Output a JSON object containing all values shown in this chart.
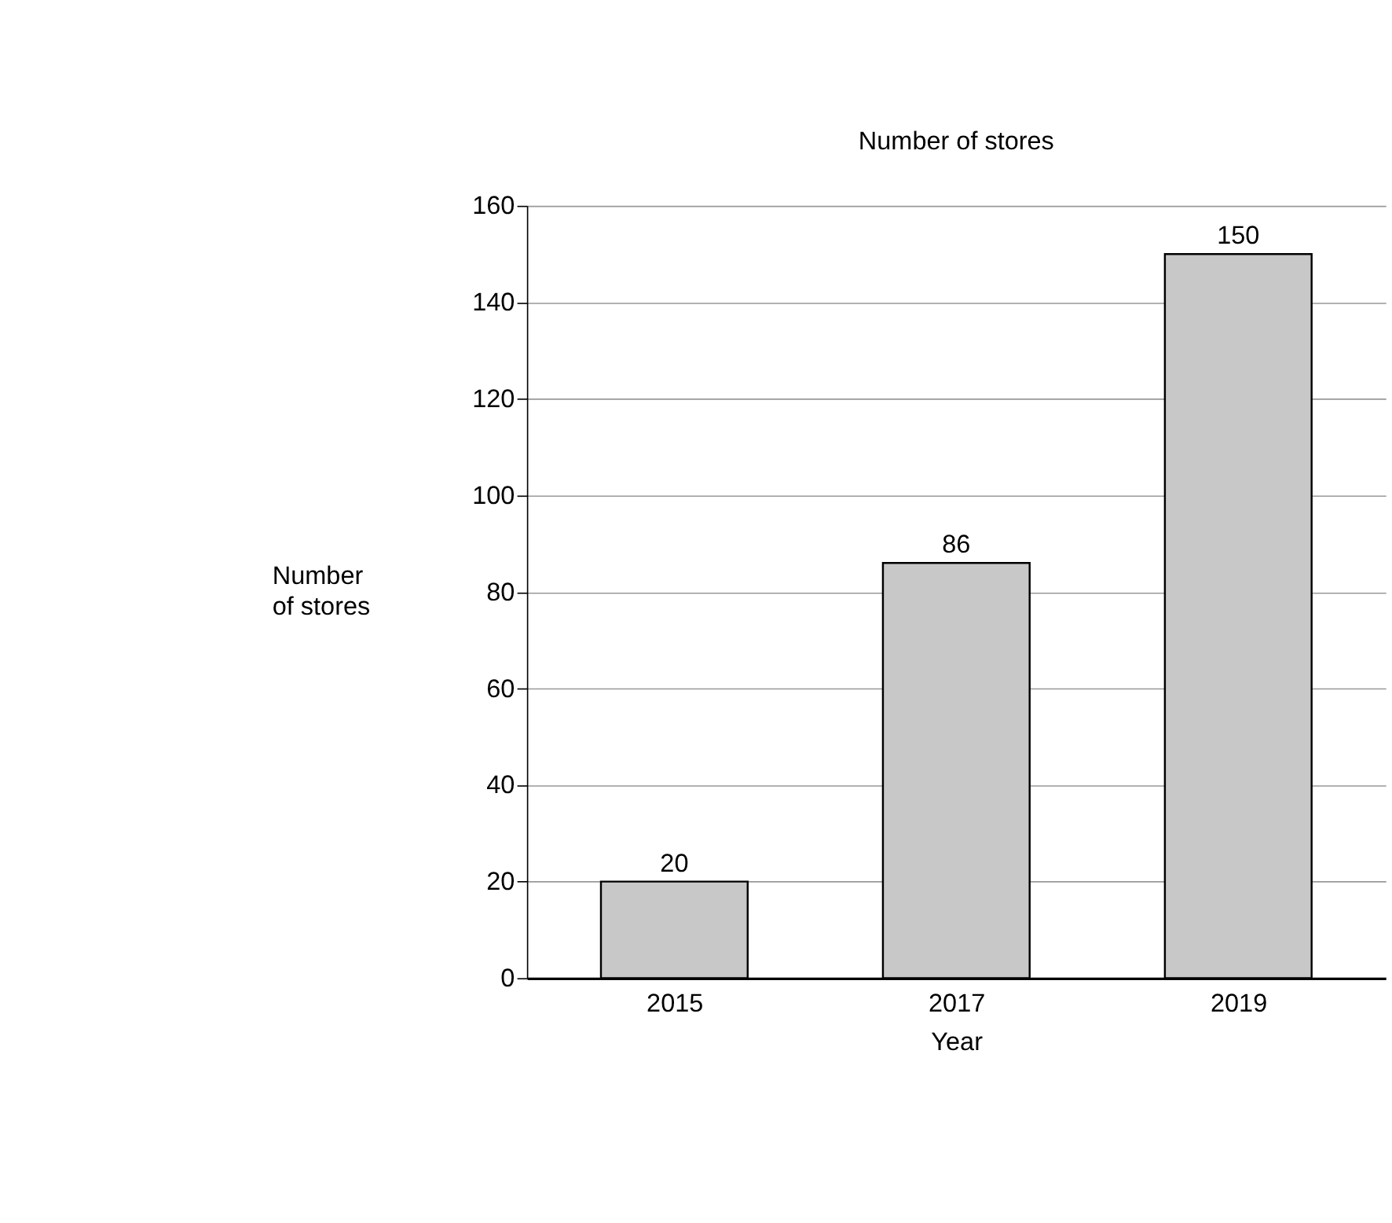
{
  "chart_data": {
    "type": "bar",
    "title": "Number of stores",
    "xlabel": "Year",
    "ylabel": "Number of stores",
    "categories": [
      "2015",
      "2017",
      "2019"
    ],
    "values": [
      20,
      86,
      150
    ],
    "color": "#c8c8c8",
    "ylim": [
      0,
      160
    ],
    "yticks": [
      0,
      20,
      40,
      60,
      80,
      100,
      120,
      140,
      160
    ],
    "grid": "y",
    "data_labels": true
  }
}
